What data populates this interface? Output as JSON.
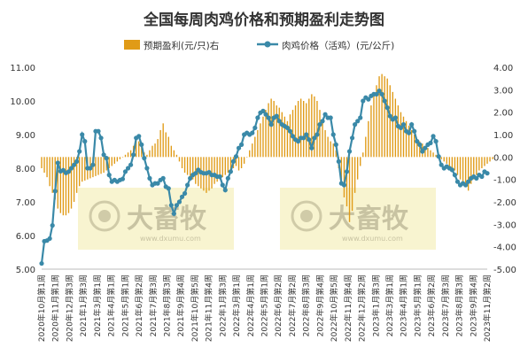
{
  "chart_data": {
    "type": "bar+line",
    "title": "全国每周肉鸡价格和预期盈利走势图",
    "legend": [
      "预期盈利(元/只)右",
      "肉鸡价格（活鸡）(元/公斤)"
    ],
    "left_axis": {
      "min": 5,
      "max": 11,
      "ticks": [
        "5.00",
        "6.00",
        "7.00",
        "8.00",
        "9.00",
        "10.00",
        "11.00"
      ]
    },
    "right_axis": {
      "min": -5,
      "max": 4,
      "ticks": [
        "-5.00",
        "-4.00",
        "-3.00",
        "-2.00",
        "-1.00",
        "0.00",
        "1.00",
        "2.00",
        "3.00",
        "4.00"
      ]
    },
    "x_tick_labels": [
      "2020年10月第1周",
      "2020年11月第1周",
      "2020年12月第3周",
      "2021年1月第3周",
      "2021年3月第1周",
      "2021年4月第1周",
      "2021年5月第1周",
      "2021年6月第2周",
      "2021年7月第3周",
      "2021年8月第3周",
      "2021年9月第4周",
      "2021年10月第5周",
      "2021年11月第4周",
      "2022年1月第3周",
      "2022年3月第1周",
      "2022年4月第1周",
      "2022年5月第1周",
      "2022年6月第2周",
      "2022年7月第2周",
      "2022年8月第3周",
      "2022年9月第4周",
      "2022年10月第5周",
      "2022年11月第4周",
      "2022年12月第2周",
      "2023年1月第3周",
      "2023年3月第1周",
      "2023年4月第1周",
      "2023年5月第1周",
      "2023年6月第2周",
      "2023年7月第3周",
      "2023年8月第3周",
      "2023年9月第4周",
      "2023年11月第2周"
    ],
    "price_series": {
      "name": "肉鸡价格（活鸡）(元/公斤)",
      "values": [
        5.17,
        5.83,
        5.85,
        5.91,
        6.3,
        7.32,
        8.16,
        7.91,
        7.94,
        7.86,
        7.9,
        8.0,
        8.1,
        8.2,
        8.5,
        9.0,
        8.8,
        8.0,
        8.0,
        8.1,
        9.1,
        9.1,
        8.9,
        8.4,
        8.3,
        7.8,
        7.6,
        7.65,
        7.6,
        7.65,
        7.68,
        7.9,
        8.0,
        8.1,
        8.4,
        8.9,
        8.95,
        8.7,
        8.3,
        8.0,
        7.7,
        7.5,
        7.55,
        7.55,
        7.65,
        7.7,
        7.45,
        7.4,
        6.9,
        6.65,
        6.9,
        7.0,
        7.15,
        7.25,
        7.5,
        7.7,
        7.8,
        7.85,
        7.95,
        7.88,
        7.85,
        7.85,
        7.88,
        7.8,
        7.8,
        7.75,
        7.75,
        7.5,
        7.35,
        7.7,
        7.9,
        8.2,
        8.35,
        8.6,
        8.7,
        9.0,
        9.05,
        9.0,
        9.05,
        9.2,
        9.5,
        9.65,
        9.7,
        9.6,
        9.5,
        9.3,
        9.5,
        9.55,
        9.4,
        9.3,
        9.25,
        9.2,
        9.1,
        8.95,
        8.85,
        8.8,
        8.9,
        8.9,
        9.0,
        8.85,
        8.6,
        8.9,
        9.0,
        9.3,
        9.4,
        9.6,
        9.5,
        9.5,
        9.0,
        8.7,
        8.2,
        7.55,
        7.5,
        7.9,
        8.5,
        8.9,
        9.3,
        9.4,
        9.5,
        10.0,
        10.1,
        10.05,
        10.15,
        10.2,
        10.2,
        10.3,
        10.2,
        10.0,
        9.8,
        9.55,
        9.45,
        9.5,
        9.25,
        9.2,
        9.3,
        9.1,
        9.05,
        9.3,
        9.1,
        8.8,
        8.7,
        8.5,
        8.6,
        8.7,
        8.75,
        8.95,
        8.8,
        8.35,
        8.1,
        8.0,
        8.05,
        8.0,
        7.95,
        7.8,
        7.6,
        7.5,
        7.55,
        7.5,
        7.6,
        7.7,
        7.75,
        7.7,
        7.8,
        7.75,
        7.9,
        7.85
      ]
    },
    "profit_series": {
      "name": "预期盈利(元/只)右",
      "values": [
        -0.5,
        -0.7,
        -0.9,
        -1.3,
        -1.6,
        -1.9,
        -2.3,
        -2.5,
        -2.6,
        -2.6,
        -2.5,
        -2.3,
        -2.0,
        -1.6,
        -1.3,
        -1.1,
        -1.05,
        -1.0,
        -0.95,
        -0.9,
        -0.85,
        -0.8,
        -0.75,
        -0.7,
        -0.6,
        -0.5,
        -0.4,
        -0.3,
        -0.2,
        -0.1,
        0.0,
        0.1,
        0.2,
        0.3,
        0.5,
        0.9,
        0.7,
        0.5,
        0.2,
        0.1,
        0.3,
        0.5,
        0.6,
        0.8,
        1.2,
        1.5,
        1.1,
        0.9,
        0.5,
        0.3,
        0.1,
        -0.2,
        -0.5,
        -0.7,
        -0.8,
        -0.9,
        -1.0,
        -1.2,
        -1.3,
        -1.4,
        -1.5,
        -1.6,
        -1.5,
        -1.4,
        -1.2,
        -1.1,
        -1.0,
        -0.9,
        -0.8,
        -0.7,
        -0.6,
        -0.5,
        -0.4,
        -0.6,
        -0.5,
        -0.3,
        0.0,
        0.3,
        0.6,
        0.9,
        1.2,
        1.5,
        1.8,
        2.1,
        2.4,
        2.6,
        2.5,
        2.3,
        2.2,
        2.0,
        1.8,
        1.6,
        1.9,
        2.1,
        2.3,
        2.5,
        2.6,
        2.5,
        2.4,
        2.6,
        2.8,
        2.7,
        2.5,
        2.1,
        1.6,
        1.2,
        0.9,
        0.7,
        0.6,
        0.3,
        -0.5,
        -1.2,
        -1.8,
        -2.2,
        -2.9,
        -2.4,
        -1.6,
        -1.0,
        -0.4,
        0.2,
        0.9,
        1.6,
        2.3,
        2.8,
        3.2,
        3.6,
        3.7,
        3.6,
        3.5,
        3.2,
        2.9,
        2.6,
        2.3,
        2.0,
        1.8,
        1.6,
        1.4,
        1.2,
        1.0,
        0.8,
        0.7,
        0.6,
        0.5,
        0.4,
        0.3,
        0.2,
        0.1,
        0.0,
        -0.1,
        -0.2,
        -0.3,
        -0.4,
        -0.5,
        -0.6,
        -0.8,
        -1.0,
        -1.2,
        -1.3,
        -1.5,
        -1.2,
        -1.0,
        -0.8,
        -0.6,
        -0.5,
        -0.4,
        -0.3,
        -0.2,
        -0.1
      ],
      "ylim": [
        -5,
        4
      ]
    },
    "colors": {
      "bar": "#e09b17",
      "line": "#3a89a8",
      "marker": "#3a89a8"
    },
    "grid": false,
    "legend_position": "top-center"
  },
  "watermark": {
    "text": "大畜牧",
    "sub": "www.dxumu.com"
  }
}
